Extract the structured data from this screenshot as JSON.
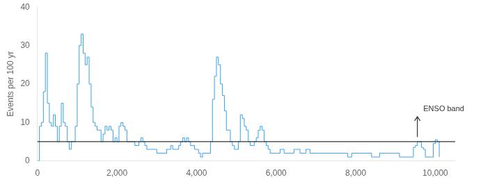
{
  "chart_data": {
    "type": "line",
    "ylabel": "Events per 100 yr",
    "line_style": "steps",
    "grid": false,
    "xlim": [
      0,
      10500
    ],
    "ylim": [
      0,
      40
    ],
    "xticks": [
      0,
      {
        "value": 2000,
        "label": "2,000"
      },
      {
        "value": 4000,
        "label": "4,000"
      },
      {
        "value": 6000,
        "label": "6,000"
      },
      {
        "value": 8000,
        "label": "8,000"
      },
      {
        "value": 10000,
        "label": "10,000"
      }
    ],
    "yticks": [
      0,
      10,
      20,
      30,
      40
    ],
    "annotations": [
      {
        "type": "line",
        "y": 5
      },
      {
        "type": "arrow",
        "x": 9550,
        "from": 6.2,
        "to": 11.5
      },
      {
        "type": "text",
        "text": "ENSO band",
        "x": 9700,
        "y": 12.5
      }
    ],
    "x": [
      0,
      50,
      100,
      150,
      200,
      250,
      300,
      350,
      400,
      450,
      500,
      550,
      600,
      650,
      700,
      750,
      800,
      850,
      900,
      950,
      1000,
      1050,
      1100,
      1150,
      1200,
      1250,
      1300,
      1350,
      1400,
      1450,
      1500,
      1550,
      1600,
      1650,
      1700,
      1750,
      1800,
      1850,
      1900,
      1950,
      2000,
      2050,
      2100,
      2150,
      2200,
      2250,
      2300,
      2350,
      2400,
      2450,
      2500,
      2550,
      2600,
      2650,
      2700,
      2750,
      2800,
      2850,
      2900,
      2950,
      3000,
      3050,
      3100,
      3150,
      3200,
      3250,
      3300,
      3350,
      3400,
      3450,
      3500,
      3550,
      3600,
      3650,
      3700,
      3750,
      3800,
      3850,
      3900,
      3950,
      4000,
      4050,
      4100,
      4150,
      4200,
      4250,
      4300,
      4350,
      4400,
      4450,
      4500,
      4550,
      4600,
      4650,
      4700,
      4750,
      4800,
      4850,
      4900,
      4950,
      5000,
      5050,
      5100,
      5150,
      5200,
      5250,
      5300,
      5350,
      5400,
      5450,
      5500,
      5550,
      5600,
      5650,
      5700,
      5750,
      5800,
      5850,
      5900,
      5950,
      6000,
      6050,
      6100,
      6150,
      6200,
      6250,
      6300,
      6350,
      6400,
      6450,
      6500,
      6550,
      6600,
      6650,
      6700,
      6750,
      6800,
      6850,
      6900,
      6950,
      7000,
      7050,
      7100,
      7150,
      7200,
      7250,
      7300,
      7350,
      7400,
      7450,
      7500,
      7550,
      7600,
      7650,
      7700,
      7750,
      7800,
      7850,
      7900,
      7950,
      8000,
      8050,
      8100,
      8150,
      8200,
      8250,
      8300,
      8350,
      8400,
      8450,
      8500,
      8550,
      8600,
      8650,
      8700,
      8750,
      8800,
      8850,
      8900,
      8950,
      9000,
      9050,
      9100,
      9150,
      9200,
      9250,
      9300,
      9350,
      9400,
      9450,
      9500,
      9550,
      9600,
      9650,
      9700,
      9750,
      9800,
      9850,
      9900,
      9950,
      10000,
      10050,
      10100
    ],
    "values": [
      0,
      9,
      10,
      18,
      28,
      15,
      10,
      9,
      12,
      9,
      5,
      9,
      15,
      10,
      9,
      5,
      3,
      5,
      5,
      9,
      20,
      30,
      33,
      28,
      25,
      27,
      20,
      14,
      10,
      9,
      8,
      8,
      5,
      7,
      9,
      8,
      9,
      8,
      5,
      6,
      5,
      9,
      10,
      9,
      8,
      5,
      5,
      5,
      5,
      4,
      4,
      5,
      6,
      5,
      4,
      3,
      3,
      3,
      3,
      3,
      2,
      2,
      2,
      2,
      2,
      3,
      3,
      4,
      3,
      3,
      3,
      4,
      5,
      6,
      5,
      6,
      5,
      4,
      4,
      3,
      3,
      2,
      1,
      2,
      2,
      2,
      2,
      5,
      16,
      22,
      27,
      25,
      20,
      17,
      13,
      8,
      8,
      5,
      4,
      3,
      3,
      5,
      12,
      11,
      9,
      8,
      5,
      4,
      4,
      5,
      6,
      8,
      9,
      8,
      5,
      4,
      3,
      2,
      2,
      2,
      2,
      2,
      3,
      3,
      2,
      2,
      2,
      2,
      2,
      3,
      3,
      3,
      2,
      2,
      2,
      3,
      3,
      2,
      2,
      2,
      2,
      2,
      2,
      2,
      2,
      2,
      2,
      2,
      2,
      2,
      2,
      2,
      2,
      2,
      2,
      2,
      1,
      1,
      2,
      2,
      2,
      2,
      2,
      2,
      2,
      2,
      2,
      2,
      1,
      1,
      1,
      1,
      2,
      2,
      2,
      2,
      2,
      2,
      2,
      2,
      2,
      2,
      1,
      1,
      1,
      1,
      1,
      1,
      1,
      3.5,
      4,
      5,
      5,
      3.5,
      3,
      1,
      1,
      1,
      1,
      4.5,
      5.5,
      5,
      1
    ]
  }
}
